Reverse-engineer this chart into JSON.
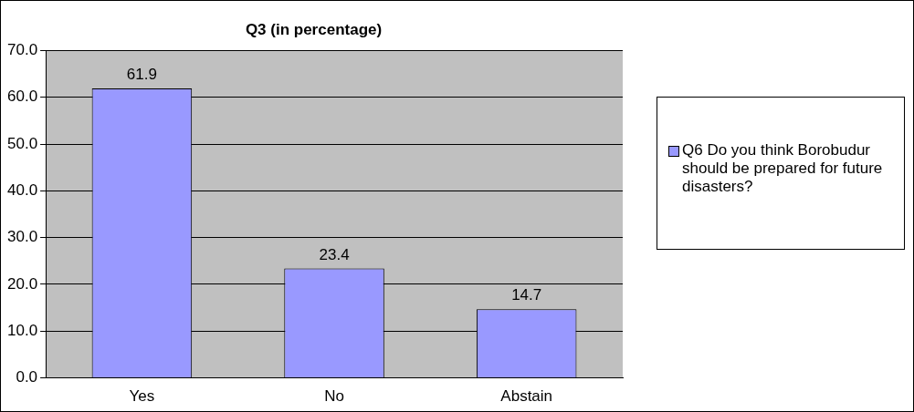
{
  "chart_data": {
    "type": "bar",
    "title": "Q3 (in percentage)",
    "categories": [
      "Yes",
      "No",
      "Abstain"
    ],
    "series": [
      {
        "name": "Q6 Do you think Borobudur should be prepared for future disasters?",
        "color": "#9999ff",
        "values": [
          61.9,
          23.4,
          14.7
        ]
      }
    ],
    "ylim": [
      0,
      70
    ],
    "yticks": [
      {
        "value": 0,
        "label": "0.0"
      },
      {
        "value": 10,
        "label": "10.0"
      },
      {
        "value": 20,
        "label": "20.0"
      },
      {
        "value": 30,
        "label": "30.0"
      },
      {
        "value": 40,
        "label": "40.0"
      },
      {
        "value": 50,
        "label": "50.0"
      },
      {
        "value": 60,
        "label": "60.0"
      },
      {
        "value": 70,
        "label": "70.0"
      }
    ],
    "grid": "y",
    "legend": "right",
    "data_labels": true
  }
}
